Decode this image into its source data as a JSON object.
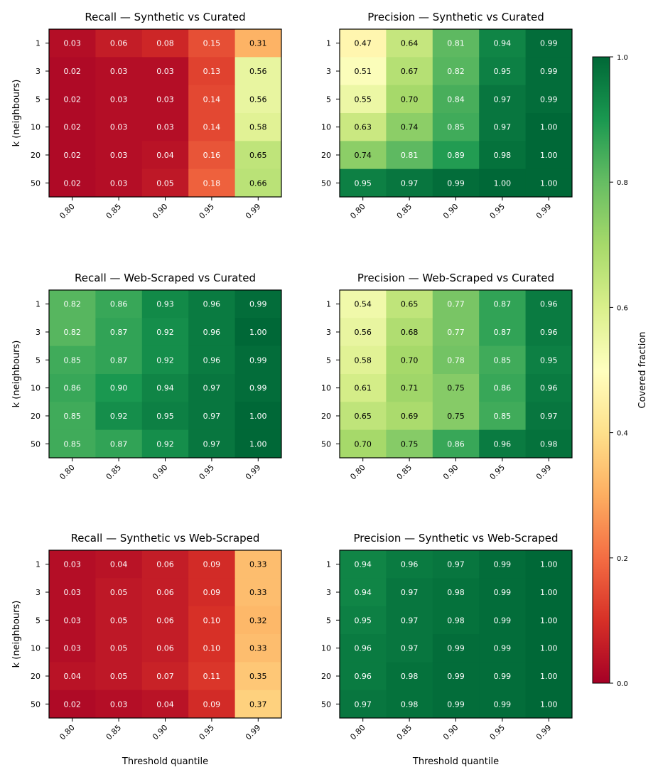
{
  "colorbar": {
    "label": "Covered fraction",
    "ticks": [
      "0.0",
      "0.2",
      "0.4",
      "0.6",
      "0.8",
      "1.0"
    ],
    "range": [
      0,
      1
    ],
    "colormap": "RdYlGn"
  },
  "chart_data": [
    {
      "type": "heatmap",
      "title": "Recall — Synthetic vs Curated",
      "xlabel": "",
      "ylabel": "k (neighbours)",
      "x_categories": [
        "0.80",
        "0.85",
        "0.90",
        "0.95",
        "0.99"
      ],
      "y_categories": [
        "1",
        "3",
        "5",
        "10",
        "20",
        "50"
      ],
      "values": [
        [
          0.03,
          0.06,
          0.08,
          0.15,
          0.31
        ],
        [
          0.02,
          0.03,
          0.03,
          0.13,
          0.56
        ],
        [
          0.02,
          0.03,
          0.03,
          0.14,
          0.56
        ],
        [
          0.02,
          0.03,
          0.03,
          0.14,
          0.58
        ],
        [
          0.02,
          0.03,
          0.04,
          0.16,
          0.65
        ],
        [
          0.02,
          0.03,
          0.05,
          0.18,
          0.66
        ]
      ]
    },
    {
      "type": "heatmap",
      "title": "Precision — Synthetic vs Curated",
      "xlabel": "",
      "ylabel": "",
      "x_categories": [
        "0.80",
        "0.85",
        "0.90",
        "0.95",
        "0.99"
      ],
      "y_categories": [
        "1",
        "3",
        "5",
        "10",
        "20",
        "50"
      ],
      "values": [
        [
          0.47,
          0.64,
          0.81,
          0.94,
          0.99
        ],
        [
          0.51,
          0.67,
          0.82,
          0.95,
          0.99
        ],
        [
          0.55,
          0.7,
          0.84,
          0.97,
          0.99
        ],
        [
          0.63,
          0.74,
          0.85,
          0.97,
          1.0
        ],
        [
          0.74,
          0.81,
          0.89,
          0.98,
          1.0
        ],
        [
          0.95,
          0.97,
          0.99,
          1.0,
          1.0
        ]
      ]
    },
    {
      "type": "heatmap",
      "title": "Recall — Web-Scraped vs Curated",
      "xlabel": "",
      "ylabel": "k (neighbours)",
      "x_categories": [
        "0.80",
        "0.85",
        "0.90",
        "0.95",
        "0.99"
      ],
      "y_categories": [
        "1",
        "3",
        "5",
        "10",
        "20",
        "50"
      ],
      "values": [
        [
          0.82,
          0.86,
          0.93,
          0.96,
          0.99
        ],
        [
          0.82,
          0.87,
          0.92,
          0.96,
          1.0
        ],
        [
          0.85,
          0.87,
          0.92,
          0.96,
          0.99
        ],
        [
          0.86,
          0.9,
          0.94,
          0.97,
          0.99
        ],
        [
          0.85,
          0.92,
          0.95,
          0.97,
          1.0
        ],
        [
          0.85,
          0.87,
          0.92,
          0.97,
          1.0
        ]
      ]
    },
    {
      "type": "heatmap",
      "title": "Precision — Web-Scraped vs Curated",
      "xlabel": "",
      "ylabel": "",
      "x_categories": [
        "0.80",
        "0.85",
        "0.90",
        "0.95",
        "0.99"
      ],
      "y_categories": [
        "1",
        "3",
        "5",
        "10",
        "20",
        "50"
      ],
      "values": [
        [
          0.54,
          0.65,
          0.77,
          0.87,
          0.96
        ],
        [
          0.56,
          0.68,
          0.77,
          0.87,
          0.96
        ],
        [
          0.58,
          0.7,
          0.78,
          0.85,
          0.95
        ],
        [
          0.61,
          0.71,
          0.75,
          0.86,
          0.96
        ],
        [
          0.65,
          0.69,
          0.75,
          0.85,
          0.97
        ],
        [
          0.7,
          0.75,
          0.86,
          0.96,
          0.98
        ]
      ]
    },
    {
      "type": "heatmap",
      "title": "Recall — Synthetic vs Web-Scraped",
      "xlabel": "Threshold quantile",
      "ylabel": "k (neighbours)",
      "x_categories": [
        "0.80",
        "0.85",
        "0.90",
        "0.95",
        "0.99"
      ],
      "y_categories": [
        "1",
        "3",
        "5",
        "10",
        "20",
        "50"
      ],
      "values": [
        [
          0.03,
          0.04,
          0.06,
          0.09,
          0.33
        ],
        [
          0.03,
          0.05,
          0.06,
          0.09,
          0.33
        ],
        [
          0.03,
          0.05,
          0.06,
          0.1,
          0.32
        ],
        [
          0.03,
          0.05,
          0.06,
          0.1,
          0.33
        ],
        [
          0.04,
          0.05,
          0.07,
          0.11,
          0.35
        ],
        [
          0.02,
          0.03,
          0.04,
          0.09,
          0.37
        ]
      ]
    },
    {
      "type": "heatmap",
      "title": "Precision — Synthetic vs Web-Scraped",
      "xlabel": "Threshold quantile",
      "ylabel": "",
      "x_categories": [
        "0.80",
        "0.85",
        "0.90",
        "0.95",
        "0.99"
      ],
      "y_categories": [
        "1",
        "3",
        "5",
        "10",
        "20",
        "50"
      ],
      "values": [
        [
          0.94,
          0.96,
          0.97,
          0.99,
          1.0
        ],
        [
          0.94,
          0.97,
          0.98,
          0.99,
          1.0
        ],
        [
          0.95,
          0.97,
          0.98,
          0.99,
          1.0
        ],
        [
          0.96,
          0.97,
          0.99,
          0.99,
          1.0
        ],
        [
          0.96,
          0.98,
          0.99,
          0.99,
          1.0
        ],
        [
          0.97,
          0.98,
          0.99,
          0.99,
          1.0
        ]
      ]
    }
  ]
}
